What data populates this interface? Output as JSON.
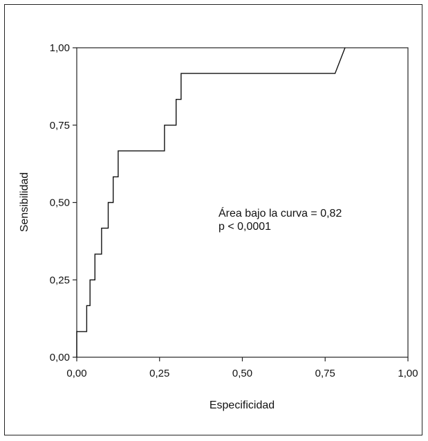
{
  "chart_data": {
    "type": "line",
    "title": "",
    "xlabel": "Especificidad",
    "ylabel": "Sensibilidad",
    "xlim": [
      0,
      1
    ],
    "ylim": [
      0,
      1
    ],
    "x_ticks": [
      "0,00",
      "0,25",
      "0,50",
      "0,75",
      "1,00"
    ],
    "y_ticks": [
      "0,00",
      "0,25",
      "0,50",
      "0,75",
      "1,00"
    ],
    "grid": false,
    "legend": "none",
    "annotation": {
      "line1": "Área bajo la curva = 0,82",
      "line2": "p < 0,0001"
    },
    "series": [
      {
        "x": [
          0,
          0,
          0.03,
          0.03,
          0.04,
          0.04,
          0.055,
          0.055,
          0.075,
          0.075,
          0.095,
          0.095,
          0.11,
          0.11,
          0.125,
          0.125,
          0.265,
          0.265,
          0.3,
          0.3,
          0.315,
          0.315,
          0.78,
          0.81
        ],
        "y": [
          0,
          0.083,
          0.083,
          0.167,
          0.167,
          0.25,
          0.25,
          0.333,
          0.333,
          0.417,
          0.417,
          0.5,
          0.5,
          0.583,
          0.583,
          0.667,
          0.667,
          0.75,
          0.75,
          0.833,
          0.833,
          0.917,
          0.917,
          1.0
        ]
      }
    ],
    "colors": {
      "line": "#111111",
      "axis": "#222222"
    }
  }
}
